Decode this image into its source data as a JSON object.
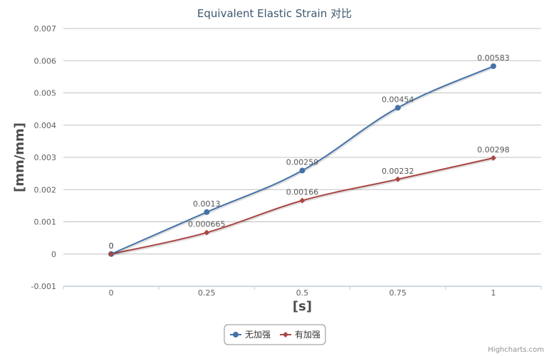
{
  "chart_data": {
    "type": "line",
    "title": "Equivalent Elastic Strain 对比",
    "xlabel": "[s]",
    "ylabel": "[mm/mm]",
    "x": [
      0,
      0.25,
      0.5,
      0.75,
      1
    ],
    "xticks": [
      "0",
      "0.25",
      "0.5",
      "0.75",
      "1"
    ],
    "xlim": [
      -0.125,
      1.125
    ],
    "ylim": [
      -0.001,
      0.007
    ],
    "yticks": [
      "-0.001",
      "0",
      "0.001",
      "0.002",
      "0.003",
      "0.004",
      "0.005",
      "0.006",
      "0.007"
    ],
    "grid": true,
    "legend_position": "bottom-center",
    "series": [
      {
        "name": "无加强",
        "color": "#4572a7",
        "marker": "circle",
        "values": [
          0,
          0.0013,
          0.00259,
          0.00454,
          0.00583
        ],
        "labels": [
          "0",
          "0.0013",
          "0.00259",
          "0.00454",
          "0.00583"
        ]
      },
      {
        "name": "有加强",
        "color": "#aa4643",
        "marker": "diamond",
        "values": [
          0,
          0.000665,
          0.00166,
          0.00232,
          0.00298
        ],
        "labels": [
          "0",
          "0.000665",
          "0.00166",
          "0.00232",
          "0.00298"
        ]
      }
    ]
  },
  "credits": "Highcharts.com"
}
